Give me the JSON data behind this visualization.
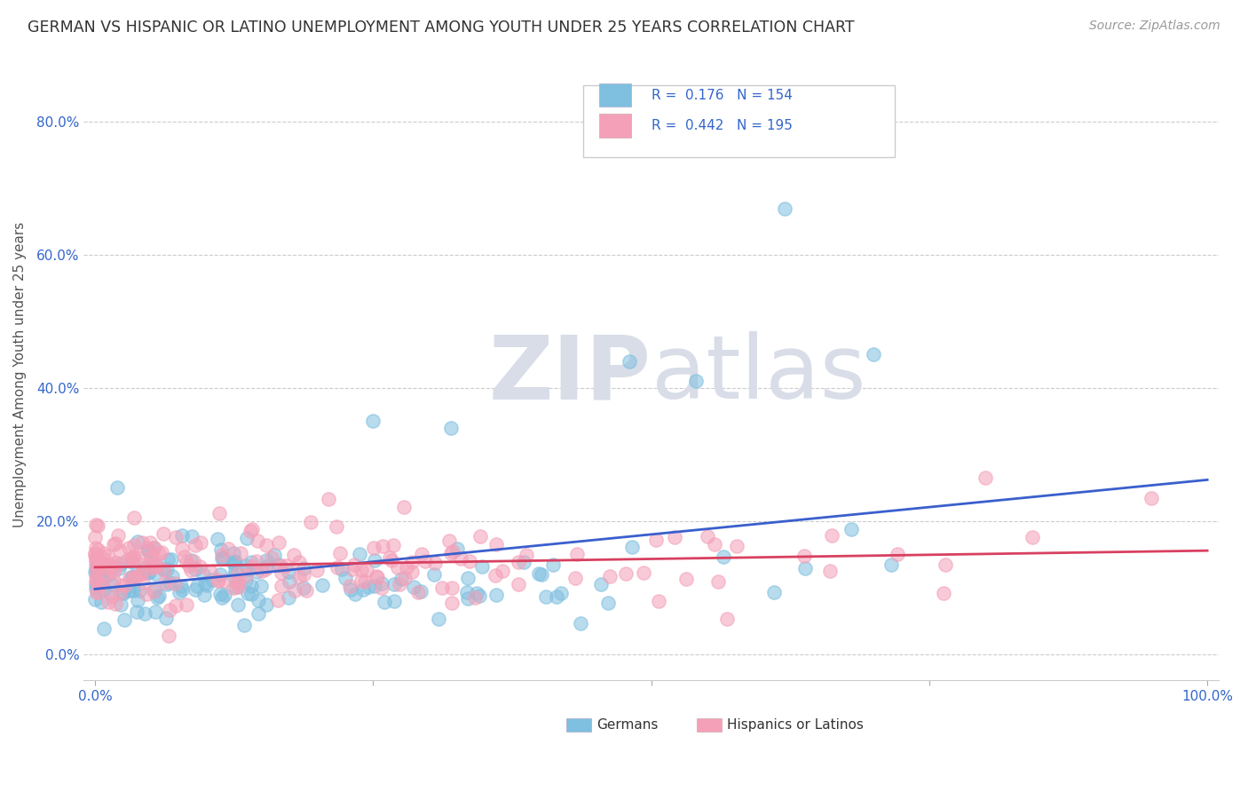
{
  "title": "GERMAN VS HISPANIC OR LATINO UNEMPLOYMENT AMONG YOUTH UNDER 25 YEARS CORRELATION CHART",
  "source": "Source: ZipAtlas.com",
  "ylabel": "Unemployment Among Youth under 25 years",
  "xlim": [
    -0.01,
    1.01
  ],
  "ylim": [
    -0.04,
    0.88
  ],
  "ytick_vals": [
    0.0,
    0.2,
    0.4,
    0.6,
    0.8
  ],
  "german_R": 0.176,
  "german_N": 154,
  "hispanic_R": 0.442,
  "hispanic_N": 195,
  "blue_color": "#7fbfdf",
  "pink_color": "#f4a0b8",
  "blue_line_color": "#3a5fcd",
  "pink_line_color": "#d84060",
  "tick_label_color": "#3366cc",
  "axis_label_color": "#555555",
  "grid_color": "#cccccc",
  "title_color": "#333333",
  "title_fontsize": 12.5,
  "background_color": "#ffffff",
  "watermark_color": "#d8dde8",
  "dot_size": 120,
  "dot_alpha": 0.55,
  "dot_linewidth": 1.2
}
